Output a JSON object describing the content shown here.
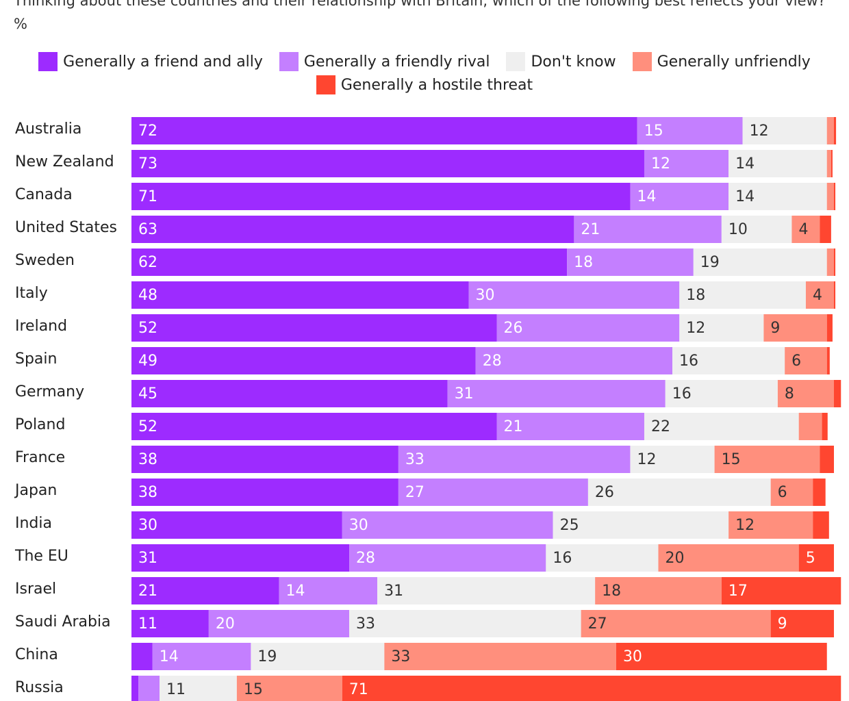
{
  "chart_data": {
    "type": "stacked-bar-horizontal",
    "title": "Thinking about these countries and their relationship with Britain, which of the following best reflects your view? %",
    "categories": [
      "Australia",
      "New Zealand",
      "Canada",
      "United States",
      "Sweden",
      "Italy",
      "Ireland",
      "Spain",
      "Germany",
      "Poland",
      "France",
      "Japan",
      "India",
      "The EU",
      "Israel",
      "Saudi Arabia",
      "China",
      "Russia"
    ],
    "xlim": [
      0,
      100
    ],
    "series": [
      {
        "name": "Generally a friend and ally",
        "color": "#9d2bff",
        "values": [
          72,
          73,
          71,
          63,
          62,
          48,
          52,
          49,
          45,
          52,
          38,
          38,
          30,
          31,
          21,
          11,
          3,
          1
        ]
      },
      {
        "name": "Generally a friendly rival",
        "color": "#c47fff",
        "values": [
          15,
          12,
          14,
          21,
          18,
          30,
          26,
          28,
          31,
          21,
          33,
          27,
          30,
          28,
          14,
          20,
          14,
          3
        ]
      },
      {
        "name": "Don't know",
        "color": "#efefef",
        "values": [
          12,
          14,
          14,
          10,
          19,
          18,
          12,
          16,
          16,
          22,
          12,
          26,
          25,
          16,
          31,
          33,
          19,
          11
        ]
      },
      {
        "name": "Generally unfriendly",
        "color": "#ff8f7d",
        "values": [
          1,
          0.6,
          1,
          4,
          1,
          4,
          9,
          6,
          8,
          3.3,
          15,
          6,
          12,
          20,
          18,
          27,
          33,
          15
        ]
      },
      {
        "name": "Generally a hostile threat",
        "color": "#ff4630",
        "values": [
          0.3,
          0.2,
          0.2,
          1.6,
          0.2,
          0.2,
          0.8,
          0.4,
          1,
          0.8,
          2,
          1.8,
          2.3,
          5,
          17,
          9,
          30,
          71
        ]
      }
    ]
  }
}
